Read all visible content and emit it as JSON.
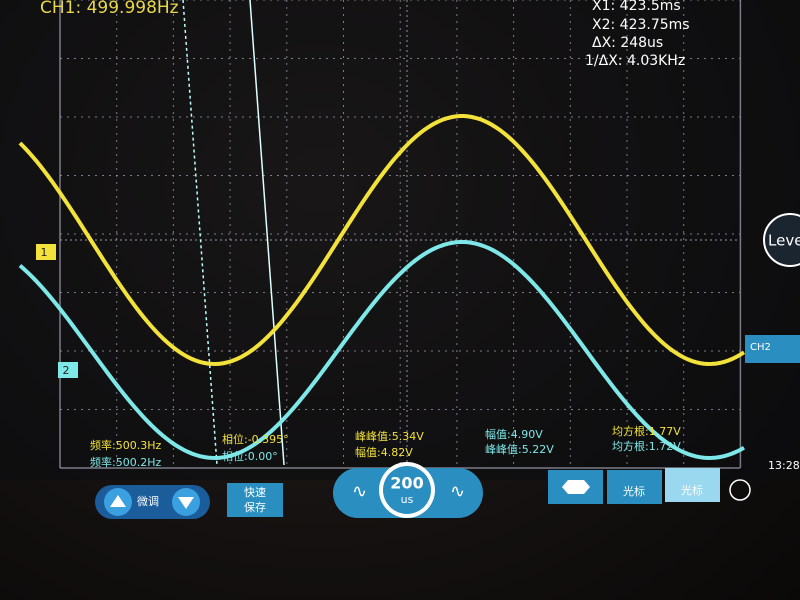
{
  "header": {
    "frequency": "CH1: 499.998Hz"
  },
  "cursors": {
    "x1": "X1:  423.5ms",
    "x2": "X2:  423.75ms",
    "dx": "ΔX:  248us",
    "inv_dx": "1/ΔX:  4.03KHz"
  },
  "markers": {
    "ch1": "1",
    "ch2": "2"
  },
  "side": {
    "level": "Leve",
    "ch2_label": "CH2"
  },
  "measurements": {
    "col1": [
      "频率:500.3Hz",
      "频率:500.2Hz"
    ],
    "col2": [
      "相位:-0.395°",
      "相位:0.00°"
    ],
    "col3": [
      "峰峰值:5.34V",
      "幅值:4.82V"
    ],
    "col4": [
      "幅值:4.90V",
      "峰峰值:5.22V"
    ],
    "col5": [
      "均方根:1.77V",
      "均方根:1.72V"
    ]
  },
  "toolbar": {
    "fine": "微调",
    "quick_save": [
      "快速",
      "保存"
    ],
    "timebase": "200",
    "timebase_unit": "us",
    "cursor1": "光标",
    "cursor2": "光标"
  },
  "status": {
    "time": "13:28"
  }
}
